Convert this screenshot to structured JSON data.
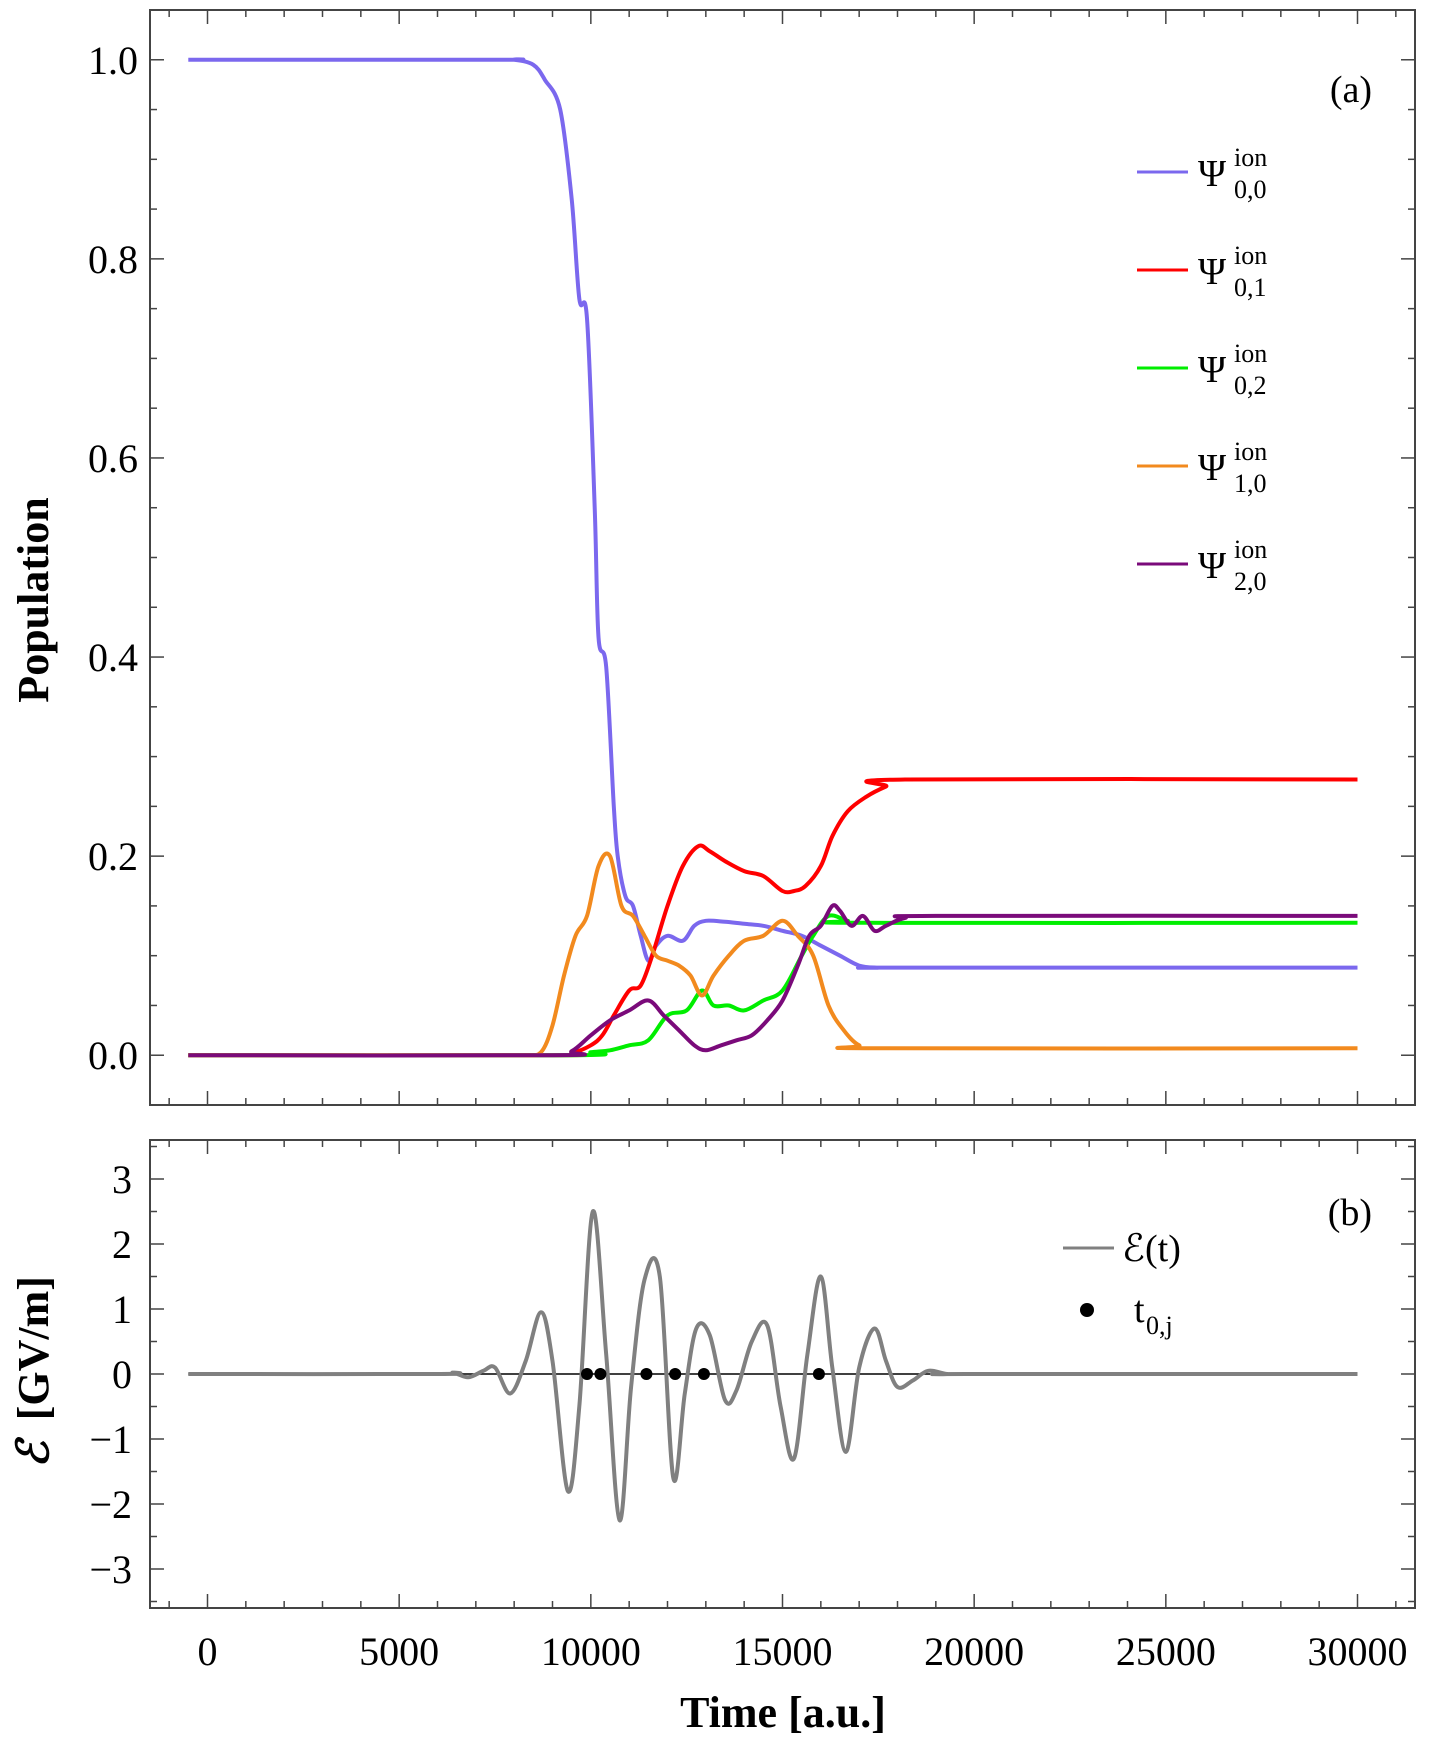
{
  "chart_data": [
    {
      "type": "line",
      "panel_label": "(a)",
      "xlabel": "",
      "ylabel": "Population",
      "xlim": [
        -1500,
        31500
      ],
      "ylim": [
        -0.05,
        1.05
      ],
      "yticks": [
        {
          "v": 0.0,
          "label": "0.0"
        },
        {
          "v": 0.2,
          "label": "0.2"
        },
        {
          "v": 0.4,
          "label": "0.4"
        },
        {
          "v": 0.6,
          "label": "0.6"
        },
        {
          "v": 0.8,
          "label": "0.8"
        },
        {
          "v": 1.0,
          "label": "1.0"
        }
      ],
      "legend_position": "top-right",
      "series": [
        {
          "name": "Ψ",
          "sup": "ion",
          "sub": "0,0",
          "color": "#7b68ee",
          "x": [
            -500,
            7500,
            8000,
            8500,
            8800,
            9200,
            9500,
            9700,
            9900,
            10100,
            10200,
            10400,
            10600,
            10700,
            10900,
            11100,
            11300,
            11500,
            11700,
            12000,
            12400,
            12700,
            13000,
            13500,
            14000,
            14500,
            15000,
            15500,
            16000,
            16500,
            17000,
            17500,
            18000,
            30000
          ],
          "y": [
            1.0,
            1.0,
            1.0,
            0.995,
            0.98,
            0.95,
            0.86,
            0.76,
            0.74,
            0.55,
            0.42,
            0.39,
            0.25,
            0.2,
            0.16,
            0.15,
            0.12,
            0.095,
            0.11,
            0.12,
            0.115,
            0.13,
            0.135,
            0.134,
            0.132,
            0.13,
            0.125,
            0.12,
            0.11,
            0.1,
            0.09,
            0.088,
            0.088,
            0.088
          ]
        },
        {
          "name": "Ψ",
          "sup": "ion",
          "sub": "0,1",
          "color": "#ff0000",
          "x": [
            -500,
            9000,
            9500,
            10000,
            10300,
            10600,
            11000,
            11300,
            11600,
            12000,
            12400,
            12800,
            13100,
            13500,
            14000,
            14500,
            15000,
            15300,
            15600,
            16000,
            16300,
            16700,
            17200,
            17700,
            18200,
            30000
          ],
          "y": [
            0.0,
            0.0,
            0.002,
            0.01,
            0.02,
            0.04,
            0.065,
            0.07,
            0.1,
            0.15,
            0.19,
            0.21,
            0.205,
            0.195,
            0.185,
            0.18,
            0.165,
            0.165,
            0.17,
            0.19,
            0.22,
            0.245,
            0.26,
            0.27,
            0.277,
            0.277
          ]
        },
        {
          "name": "Ψ",
          "sup": "ion",
          "sub": "0,2",
          "color": "#00ee00",
          "x": [
            -500,
            9500,
            10000,
            10500,
            11000,
            11500,
            12000,
            12500,
            12900,
            13200,
            13600,
            14000,
            14500,
            15000,
            15500,
            15800,
            16200,
            16700,
            17200,
            30000
          ],
          "y": [
            0.0,
            0.0,
            0.003,
            0.005,
            0.01,
            0.015,
            0.04,
            0.045,
            0.065,
            0.05,
            0.05,
            0.045,
            0.055,
            0.065,
            0.1,
            0.12,
            0.14,
            0.135,
            0.133,
            0.133
          ]
        },
        {
          "name": "Ψ",
          "sup": "ion",
          "sub": "1,0",
          "color": "#f28a1e",
          "x": [
            -500,
            7800,
            8300,
            8700,
            9000,
            9300,
            9600,
            9900,
            10200,
            10500,
            10800,
            11100,
            11400,
            11700,
            12000,
            12300,
            12600,
            12900,
            13200,
            13600,
            14000,
            14500,
            15000,
            15400,
            15800,
            16200,
            16600,
            17000,
            17500,
            30000
          ],
          "y": [
            0.0,
            0.0,
            0.0,
            0.003,
            0.03,
            0.08,
            0.12,
            0.14,
            0.19,
            0.2,
            0.15,
            0.14,
            0.12,
            0.1,
            0.095,
            0.09,
            0.08,
            0.06,
            0.08,
            0.1,
            0.115,
            0.12,
            0.135,
            0.12,
            0.1,
            0.05,
            0.025,
            0.01,
            0.007,
            0.007
          ]
        },
        {
          "name": "Ψ",
          "sup": "ion",
          "sub": "2,0",
          "color": "#7a0a7a",
          "x": [
            -500,
            9000,
            9500,
            10000,
            10500,
            11000,
            11500,
            11900,
            12300,
            12700,
            13000,
            13400,
            13800,
            14200,
            14600,
            15000,
            15400,
            15700,
            16000,
            16300,
            16500,
            16800,
            17100,
            17400,
            17700,
            18200,
            19000,
            30000
          ],
          "y": [
            0.0,
            0.0,
            0.004,
            0.02,
            0.035,
            0.045,
            0.055,
            0.04,
            0.025,
            0.01,
            0.005,
            0.01,
            0.015,
            0.02,
            0.035,
            0.055,
            0.09,
            0.12,
            0.13,
            0.15,
            0.145,
            0.13,
            0.14,
            0.125,
            0.13,
            0.138,
            0.14,
            0.14
          ]
        }
      ]
    },
    {
      "type": "line",
      "panel_label": "(b)",
      "xlabel": "Time [a.u.]",
      "ylabel": "[GV/m]",
      "ylabel_symbol": "ℰ",
      "xlim": [
        -1500,
        31500
      ],
      "ylim": [
        -3.6,
        3.6
      ],
      "xticks": [
        {
          "v": 0,
          "label": "0"
        },
        {
          "v": 5000,
          "label": "5000"
        },
        {
          "v": 10000,
          "label": "10000"
        },
        {
          "v": 15000,
          "label": "15000"
        },
        {
          "v": 20000,
          "label": "20000"
        },
        {
          "v": 25000,
          "label": "25000"
        },
        {
          "v": 30000,
          "label": "30000"
        }
      ],
      "yticks": [
        {
          "v": 3,
          "label": "3"
        },
        {
          "v": 2,
          "label": "2"
        },
        {
          "v": 1,
          "label": "1"
        },
        {
          "v": 0,
          "label": "0"
        },
        {
          "v": -1,
          "label": "−1"
        },
        {
          "v": -2,
          "label": "−2"
        },
        {
          "v": -3,
          "label": "−3"
        }
      ],
      "legend_position": "top-right",
      "field": {
        "name": "ℰ(t)",
        "color": "#808080",
        "x": [
          -500,
          6000,
          6400,
          6800,
          7200,
          7500,
          7900,
          8300,
          8700,
          9000,
          9400,
          9700,
          10050,
          10400,
          10750,
          11050,
          11400,
          11800,
          12150,
          12450,
          12750,
          13100,
          13500,
          13800,
          14200,
          14600,
          14950,
          15300,
          15650,
          16000,
          16300,
          16650,
          17000,
          17400,
          17700,
          18000,
          18400,
          18800,
          19300,
          19800,
          30000
        ],
        "y": [
          0.0,
          0.0,
          0.02,
          -0.05,
          0.05,
          0.1,
          -0.3,
          0.2,
          0.95,
          0.2,
          -1.8,
          -0.5,
          2.5,
          0.3,
          -2.25,
          -0.2,
          1.45,
          1.5,
          -1.6,
          -0.3,
          0.7,
          0.6,
          -0.4,
          -0.25,
          0.5,
          0.75,
          -0.5,
          -1.3,
          0.3,
          1.5,
          0.1,
          -1.2,
          0.1,
          0.7,
          0.2,
          -0.2,
          -0.1,
          0.05,
          0.0,
          0.0,
          0.0
        ]
      },
      "points": {
        "name": "t",
        "sub": "0,j",
        "color": "#000000",
        "x": [
          9900,
          10250,
          11450,
          12200,
          12950,
          15950
        ],
        "y": [
          0,
          0,
          0,
          0,
          0,
          0
        ]
      }
    }
  ]
}
